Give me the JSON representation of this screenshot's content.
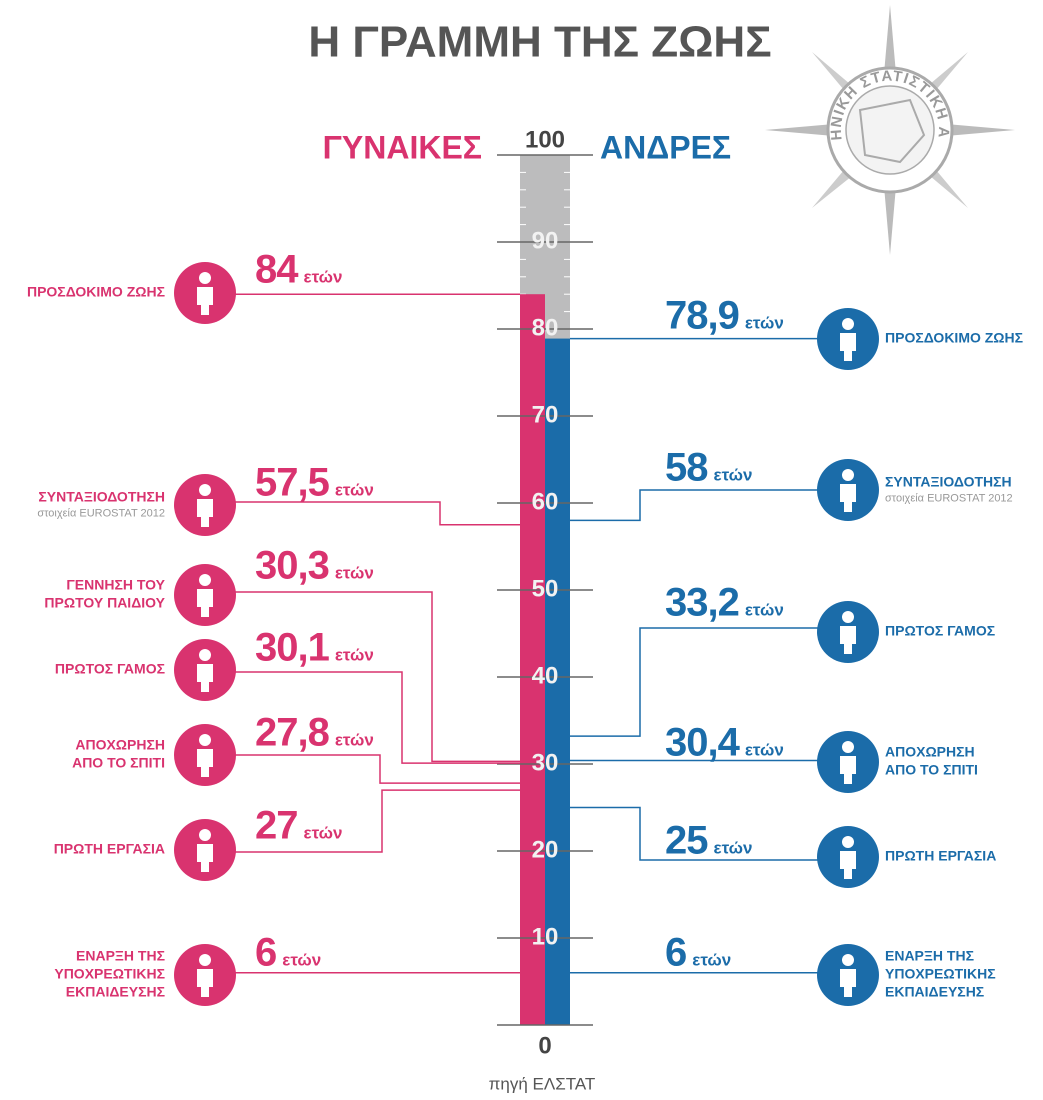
{
  "chart_data": {
    "type": "lifeline",
    "title": "Η ΓΡΑΜΜΗ ΤΗΣ ΖΩΗΣ",
    "emblem_text": "ΕΛΛΗΝΙΚΗ ΣΤΑΤΙΣΤΙΚΗ ΑΡΧΗ",
    "source": "πηγή ΕΛΣΤΑΤ",
    "unit": "ετών",
    "ylim": [
      0,
      100
    ],
    "yticks": [
      0,
      10,
      20,
      30,
      40,
      50,
      60,
      70,
      80,
      90,
      100
    ],
    "series": [
      {
        "name": "ΓΥΝΑΙΚΕΣ",
        "color": "#d9336f",
        "labels": [
          [
            "ΠΡΟΣΔΟΚΙΜΟ ΖΩΗΣ"
          ],
          [
            "ΣΥΝΤΑΞΙΟΔΟΤΗΣΗ"
          ],
          [
            "ΓΕΝΝΗΣΗ ΤΟΥ",
            "ΠΡΩΤΟΥ ΠΑΙΔΙΟΥ"
          ],
          [
            "ΠΡΩΤΟΣ ΓΑΜΟΣ"
          ],
          [
            "ΑΠΟΧΩΡΗΣΗ",
            "ΑΠΟ ΤΟ ΣΠΙΤΙ"
          ],
          [
            "ΠΡΩΤΗ ΕΡΓΑΣΙΑ"
          ],
          [
            "ΕΝΑΡΞΗ ΤΗΣ",
            "ΥΠΟΧΡΕΩΤΙΚΗΣ",
            "ΕΚΠΑΙΔΕΥΣΗΣ"
          ]
        ],
        "notes": [
          null,
          "στοιχεία EUROSTAT 2012",
          null,
          null,
          null,
          null,
          null
        ],
        "values": [
          84,
          57.5,
          30.3,
          30.1,
          27.8,
          27,
          6
        ],
        "value_labels": [
          "84",
          "57,5",
          "30,3",
          "30,1",
          "27,8",
          "27",
          "6"
        ]
      },
      {
        "name": "ΑΝΔΡΕΣ",
        "color": "#1b6ca9",
        "labels": [
          [
            "ΠΡΟΣΔΟΚΙΜΟ ΖΩΗΣ"
          ],
          [
            "ΣΥΝΤΑΞΙΟΔΟΤΗΣΗ"
          ],
          [
            "ΠΡΩΤΟΣ ΓΑΜΟΣ"
          ],
          [
            "ΑΠΟΧΩΡΗΣΗ",
            "ΑΠΟ ΤΟ ΣΠΙΤΙ"
          ],
          [
            "ΠΡΩΤΗ ΕΡΓΑΣΙΑ"
          ],
          [
            "ΕΝΑΡΞΗ ΤΗΣ",
            "ΥΠΟΧΡΕΩΤΙΚΗΣ",
            "ΕΚΠΑΙΔΕΥΣΗΣ"
          ]
        ],
        "notes": [
          null,
          "στοιχεία EUROSTAT 2012",
          null,
          null,
          null,
          null
        ],
        "values": [
          78.9,
          58,
          33.2,
          30.4,
          25,
          6
        ],
        "value_labels": [
          "78,9",
          "58",
          "33,2",
          "30,4",
          "25",
          "6"
        ]
      }
    ]
  }
}
